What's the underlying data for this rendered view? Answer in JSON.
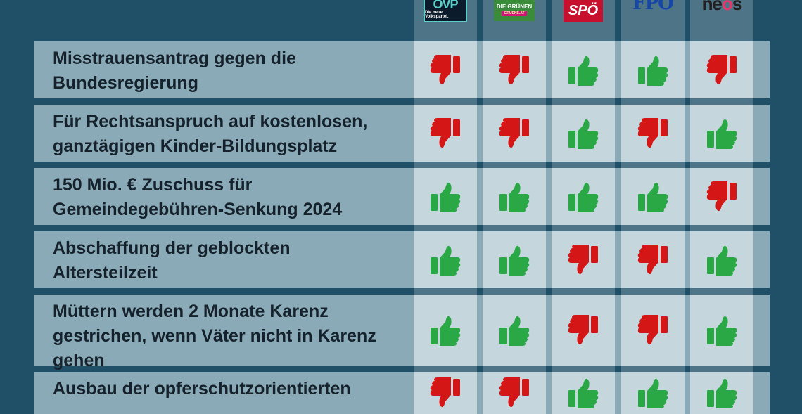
{
  "parties": [
    {
      "id": "oevp",
      "logo_text": "ÖVP",
      "logo_subtext": "Die neue Volkspartei."
    },
    {
      "id": "gruene",
      "logo_text": "DIE GRÜNEN",
      "logo_subtext": "GRUENE.AT"
    },
    {
      "id": "spoe",
      "logo_text": "SPÖ",
      "logo_subtext": ""
    },
    {
      "id": "fpoe",
      "logo_text": "FPÖ",
      "logo_subtext": ""
    },
    {
      "id": "neos",
      "logo_text": "neos",
      "logo_subtext": ""
    }
  ],
  "colors": {
    "yes": "#2aa845",
    "no": "#d41616"
  },
  "rows": [
    {
      "lines": [
        "Misstrauensantrag gegen die",
        "Bundesregierung"
      ],
      "votes": [
        "no",
        "no",
        "yes",
        "yes",
        "no"
      ]
    },
    {
      "lines": [
        "Für Rechtsanspruch auf kostenlosen,",
        "ganztägigen Kinder-Bildungsplatz"
      ],
      "votes": [
        "no",
        "no",
        "yes",
        "no",
        "yes"
      ]
    },
    {
      "lines": [
        "150 Mio. € Zuschuss für",
        "Gemeindegebühren-Senkung 2024"
      ],
      "votes": [
        "yes",
        "yes",
        "yes",
        "yes",
        "no"
      ]
    },
    {
      "lines": [
        "Abschaffung der geblockten",
        "Altersteilzeit"
      ],
      "votes": [
        "yes",
        "yes",
        "no",
        "no",
        "yes"
      ]
    },
    {
      "lines": [
        "Müttern werden 2 Monate Karenz",
        "gestrichen, wenn Väter nicht in Karenz",
        "gehen"
      ],
      "votes": [
        "yes",
        "yes",
        "no",
        "no",
        "yes"
      ]
    },
    {
      "lines": [
        "Ausbau der opferschutzorientierten"
      ],
      "votes": [
        "no",
        "no",
        "yes",
        "yes",
        "yes"
      ]
    }
  ]
}
